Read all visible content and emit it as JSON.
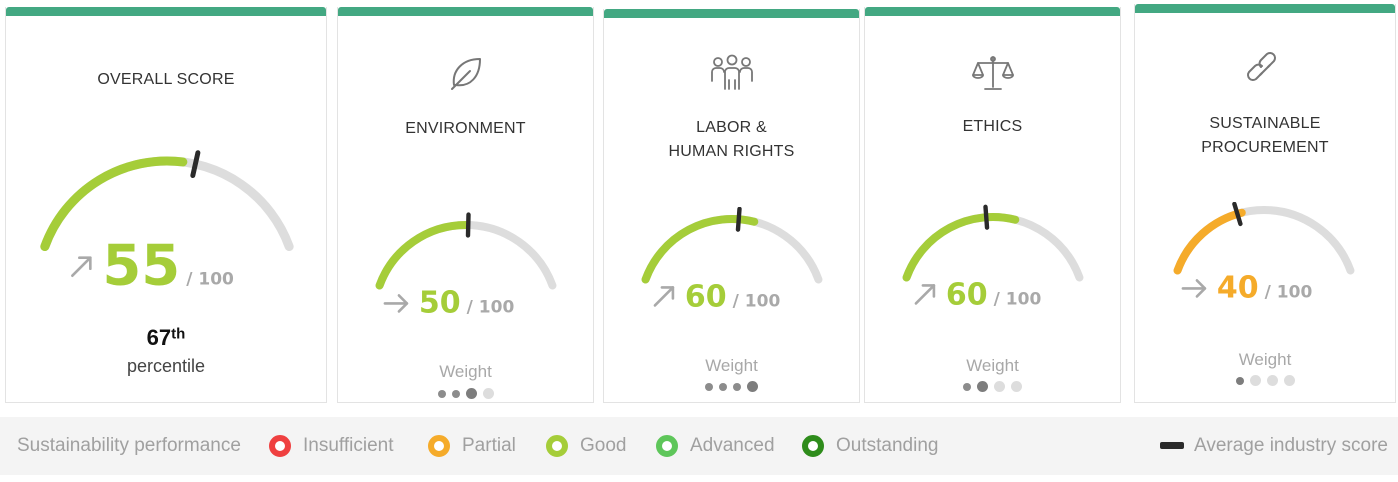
{
  "cards": [
    {
      "key": "overall",
      "title": "OVERALL SCORE",
      "icon": "none",
      "score": 55,
      "max_label": "/ 100",
      "trend": "up",
      "avg_marker": 59,
      "color": "#a5cd39",
      "percentile_number": "67",
      "percentile_suffix": "th",
      "percentile_label": "percentile"
    },
    {
      "key": "environment",
      "title": "ENVIRONMENT",
      "icon": "leaf-icon",
      "score": 50,
      "max_label": "/ 100",
      "trend": "flat",
      "avg_marker": 51,
      "color": "#a5cd39",
      "weight_label": "Weight",
      "weight": 3,
      "weight_max": 4
    },
    {
      "key": "labor",
      "title": "LABOR & HUMAN RIGHTS",
      "icon": "people-icon",
      "score": 60,
      "max_label": "/ 100",
      "trend": "up",
      "avg_marker": 53,
      "color": "#a5cd39",
      "weight_label": "Weight",
      "weight": 4,
      "weight_max": 4
    },
    {
      "key": "ethics",
      "title": "ETHICS",
      "icon": "scales-icon",
      "score": 60,
      "max_label": "/ 100",
      "trend": "up",
      "avg_marker": 47,
      "color": "#a5cd39",
      "weight_label": "Weight",
      "weight": 2,
      "weight_max": 4
    },
    {
      "key": "procurement",
      "title": "SUSTAINABLE PROCUREMENT",
      "icon": "chain-link-icon",
      "score": 40,
      "max_label": "/ 100",
      "trend": "flat",
      "avg_marker": 38,
      "color": "#f5ab2a",
      "weight_label": "Weight",
      "weight": 1,
      "weight_max": 4
    }
  ],
  "legend": {
    "title": "Sustainability performance",
    "items": [
      {
        "label": "Insufficient",
        "color": "#ef4040"
      },
      {
        "label": "Partial",
        "color": "#f5ab2a"
      },
      {
        "label": "Good",
        "color": "#a5cd39"
      },
      {
        "label": "Advanced",
        "color": "#5ec65a"
      },
      {
        "label": "Outstanding",
        "color": "#2e8c1b"
      }
    ],
    "avg_label": "Average industry score"
  },
  "colors": {
    "topbar": "#43a882",
    "track": "#dddddd",
    "marker": "#2a2a2a",
    "dot_active": "#888888",
    "dot_inactive": "#dddddd"
  }
}
